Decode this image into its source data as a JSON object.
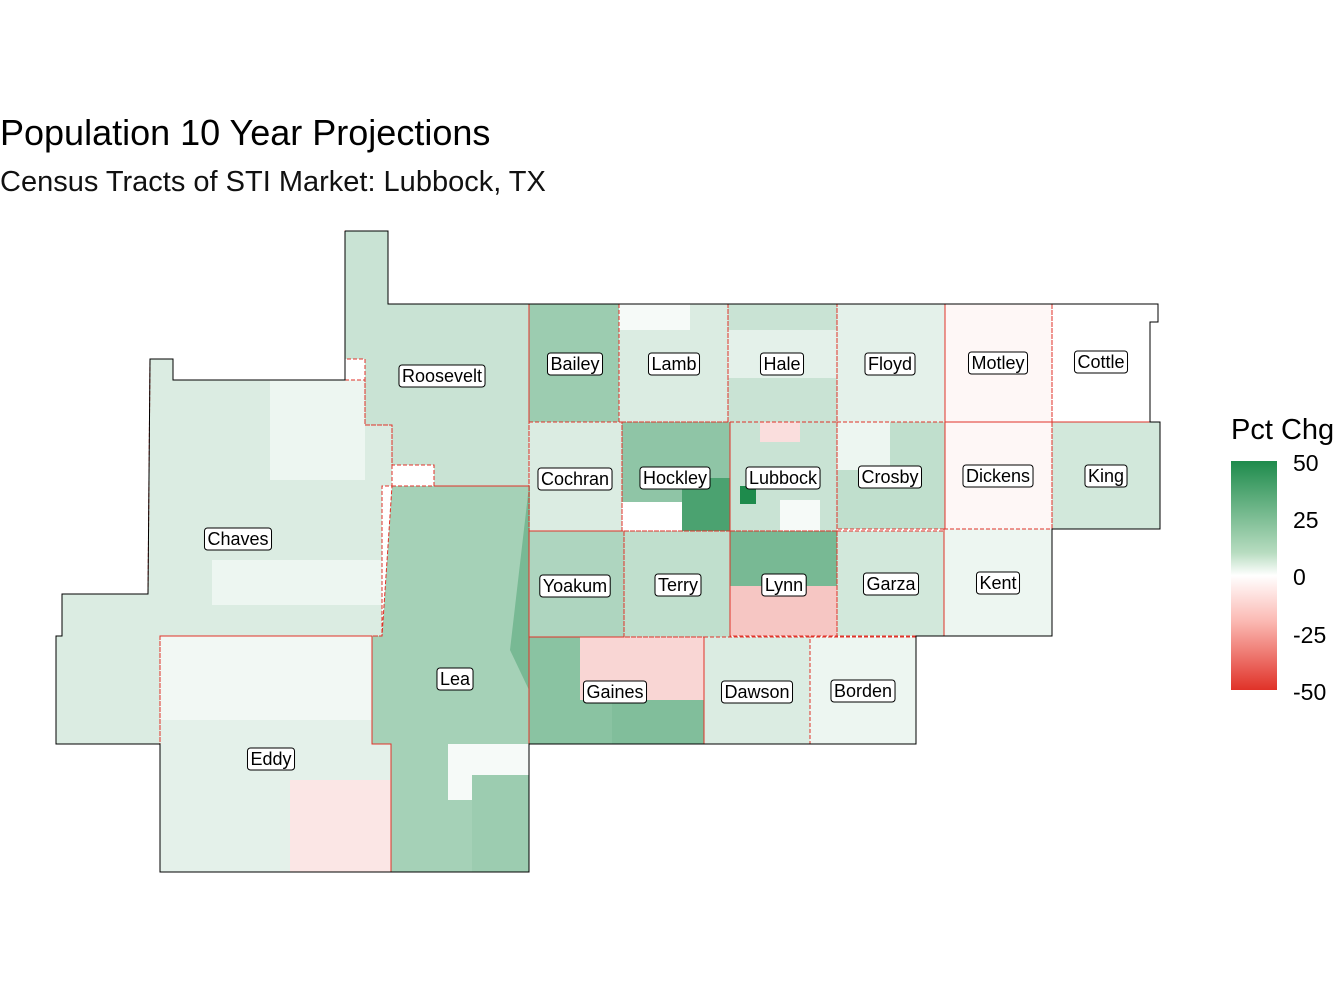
{
  "title": "Population 10 Year Projections",
  "subtitle": "Census Tracts of STI Market: Lubbock, TX",
  "legend": {
    "title": "Pct Chg",
    "ticks": [
      "50",
      "25",
      "0",
      "-25",
      "-50"
    ],
    "colors": {
      "high": "#1e8b4c",
      "mid": "#ffffff",
      "low": "#e03228"
    }
  },
  "counties": [
    {
      "name": "Roosevelt",
      "pct": 12
    },
    {
      "name": "Chaves",
      "pct": 8
    },
    {
      "name": "Eddy",
      "pct": 6
    },
    {
      "name": "Lea",
      "pct": 20
    },
    {
      "name": "Bailey",
      "pct": 22
    },
    {
      "name": "Lamb",
      "pct": 8
    },
    {
      "name": "Hale",
      "pct": 12
    },
    {
      "name": "Floyd",
      "pct": 6
    },
    {
      "name": "Motley",
      "pct": -2
    },
    {
      "name": "Cottle",
      "pct": 0
    },
    {
      "name": "Cochran",
      "pct": 8
    },
    {
      "name": "Hockley",
      "pct": 25
    },
    {
      "name": "Lubbock",
      "pct": 12
    },
    {
      "name": "Crosby",
      "pct": 14
    },
    {
      "name": "Dickens",
      "pct": -2
    },
    {
      "name": "King",
      "pct": 10
    },
    {
      "name": "Yoakum",
      "pct": 18
    },
    {
      "name": "Terry",
      "pct": 14
    },
    {
      "name": "Lynn",
      "pct": 30
    },
    {
      "name": "Garza",
      "pct": 10
    },
    {
      "name": "Kent",
      "pct": 4
    },
    {
      "name": "Gaines",
      "pct": 26
    },
    {
      "name": "Dawson",
      "pct": 8
    },
    {
      "name": "Borden",
      "pct": 4
    }
  ]
}
